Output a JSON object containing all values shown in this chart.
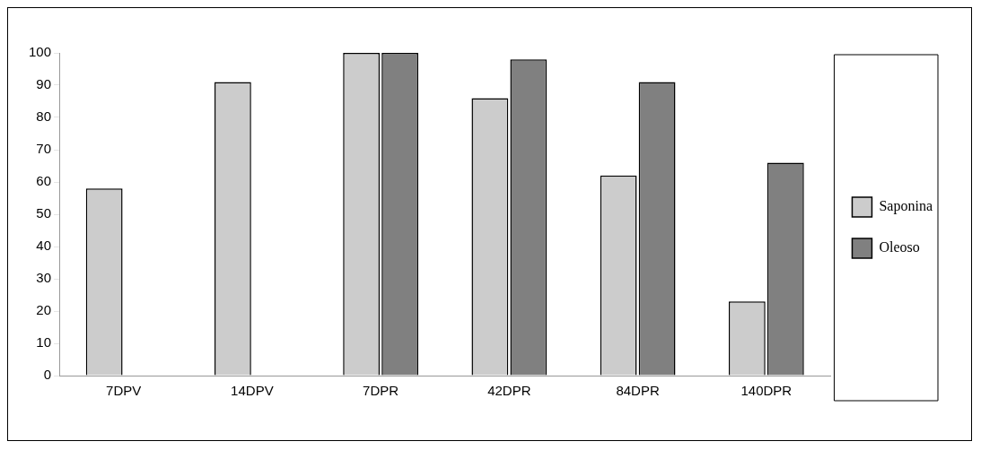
{
  "chart_data": {
    "type": "bar",
    "categories": [
      "7DPV",
      "14DPV",
      "7DPR",
      "42DPR",
      "84DPR",
      "140DPR"
    ],
    "series": [
      {
        "name": "Saponina",
        "color": "#cccccc",
        "values": [
          58,
          91,
          100,
          86,
          62,
          23
        ]
      },
      {
        "name": "Oleoso",
        "color": "#808080",
        "values": [
          0,
          0,
          100,
          98,
          91,
          66
        ]
      }
    ],
    "ylim": [
      0,
      100
    ],
    "yticks": [
      0,
      10,
      20,
      30,
      40,
      50,
      60,
      70,
      80,
      90,
      100
    ],
    "grid": false,
    "legend": "right"
  }
}
